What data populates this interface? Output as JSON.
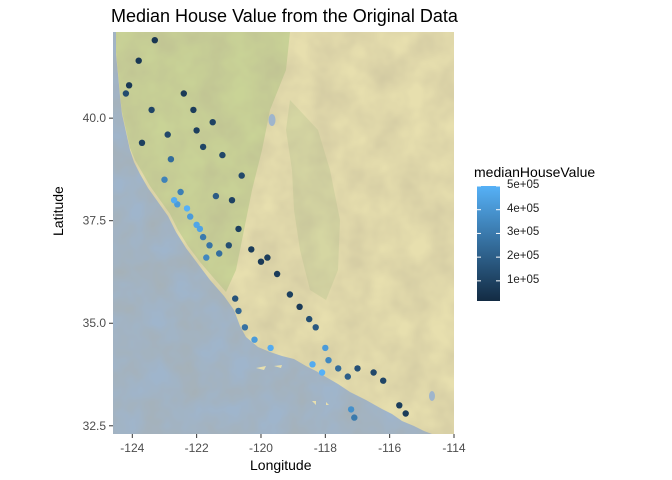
{
  "title": "Median House Value from the Original Data",
  "chart_data": {
    "type": "scatter",
    "title": "Median House Value from the Original Data",
    "xlabel": "Longitude",
    "ylabel": "Latitude",
    "xlim": [
      -124.6,
      -114.0
    ],
    "ylim": [
      32.3,
      42.1
    ],
    "x_ticks": [
      -124,
      -122,
      -120,
      -118,
      -116,
      -114
    ],
    "x_tick_labels": [
      "-124",
      "-122",
      "-120",
      "-118",
      "-116",
      "-114"
    ],
    "y_ticks": [
      32.5,
      35.0,
      37.5,
      40.0
    ],
    "y_tick_labels": [
      "32.5",
      "35.0",
      "37.5",
      "40.0"
    ],
    "background": "terrain map of California",
    "legend": {
      "title": "medianHouseValue",
      "position": "right",
      "breaks": [
        100000,
        200000,
        300000,
        400000,
        500000
      ],
      "labels": [
        "1e+05",
        "2e+05",
        "3e+05",
        "4e+05",
        "5e+05"
      ],
      "range": [
        15000,
        500001
      ],
      "color_low": "#132B43",
      "color_high": "#56B1F7"
    },
    "series": [
      {
        "x": [
          -124.1,
          -123.8,
          -123.3,
          -123.7,
          -122.4,
          -122.1,
          -122.0,
          -121.5,
          -121.2,
          -121.8,
          -120.6,
          -120.9,
          -123.0,
          -122.5,
          -122.6,
          -122.7,
          -122.3,
          -122.2,
          -122.0,
          -121.9,
          -121.8,
          -121.6,
          -121.3,
          -121.0,
          -120.7,
          -120.3,
          -120.0,
          -119.8,
          -119.5,
          -119.1,
          -118.8,
          -118.5,
          -118.3,
          -118.0,
          -117.9,
          -117.6,
          -117.3,
          -117.0,
          -116.5,
          -116.2,
          -115.7,
          -115.5,
          -118.4,
          -118.1,
          -117.2,
          -117.1,
          -120.7,
          -120.5,
          -120.2,
          -119.7,
          -121.7,
          -123.4,
          -122.8,
          -124.2,
          -122.9,
          -121.4,
          -120.8
        ],
        "y": [
          40.8,
          41.4,
          41.9,
          39.4,
          40.6,
          40.2,
          39.7,
          39.9,
          39.1,
          39.3,
          38.6,
          38.0,
          38.5,
          38.2,
          37.9,
          38.0,
          37.8,
          37.6,
          37.4,
          37.3,
          37.1,
          36.9,
          36.7,
          36.9,
          37.3,
          36.8,
          36.5,
          36.6,
          36.2,
          35.7,
          35.4,
          35.1,
          34.9,
          34.4,
          34.1,
          33.9,
          33.7,
          33.9,
          33.8,
          33.6,
          33.0,
          32.8,
          34.0,
          33.8,
          32.9,
          32.7,
          35.3,
          34.9,
          34.6,
          34.4,
          36.6,
          40.2,
          39.0,
          40.6,
          39.6,
          38.1,
          35.6
        ],
        "values": [
          65000,
          60000,
          55000,
          90000,
          70000,
          80000,
          85000,
          100000,
          115000,
          110000,
          120000,
          100000,
          330000,
          320000,
          420000,
          480000,
          500001,
          420000,
          460000,
          450000,
          300000,
          280000,
          260000,
          140000,
          90000,
          75000,
          70000,
          80000,
          75000,
          90000,
          70000,
          140000,
          180000,
          420000,
          350000,
          250000,
          200000,
          150000,
          120000,
          110000,
          80000,
          75000,
          480000,
          500001,
          380000,
          300000,
          230000,
          270000,
          420000,
          480000,
          350000,
          110000,
          250000,
          130000,
          120000,
          190000,
          160000
        ]
      }
    ]
  },
  "colors": {
    "ocean": "#9fb5cc",
    "land_base": "#e7dfae",
    "land_green": "#c2cf90",
    "panel_background": "#ebebeb"
  }
}
